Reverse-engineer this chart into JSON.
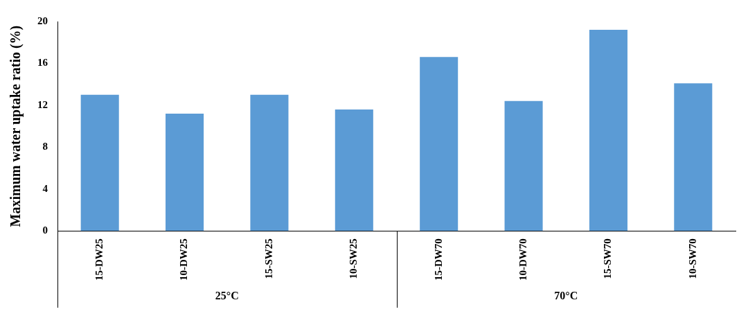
{
  "chart_data": {
    "type": "bar",
    "ylabel": "Maximum water uptake ratio (%)",
    "categories": [
      "15-DW25",
      "10-DW25",
      "15-SW25",
      "10-SW25",
      "15-DW70",
      "10-DW70",
      "15-SW70",
      "10-SW70"
    ],
    "values": [
      13.0,
      11.2,
      13.0,
      11.6,
      16.6,
      12.4,
      19.2,
      14.1
    ],
    "color": "#5b9bd5",
    "ylim": [
      0,
      20
    ],
    "yticks": [
      0,
      4,
      8,
      12,
      16,
      20
    ],
    "grid": false,
    "legend": false,
    "annotations": [
      "25°C",
      "70°C"
    ]
  }
}
